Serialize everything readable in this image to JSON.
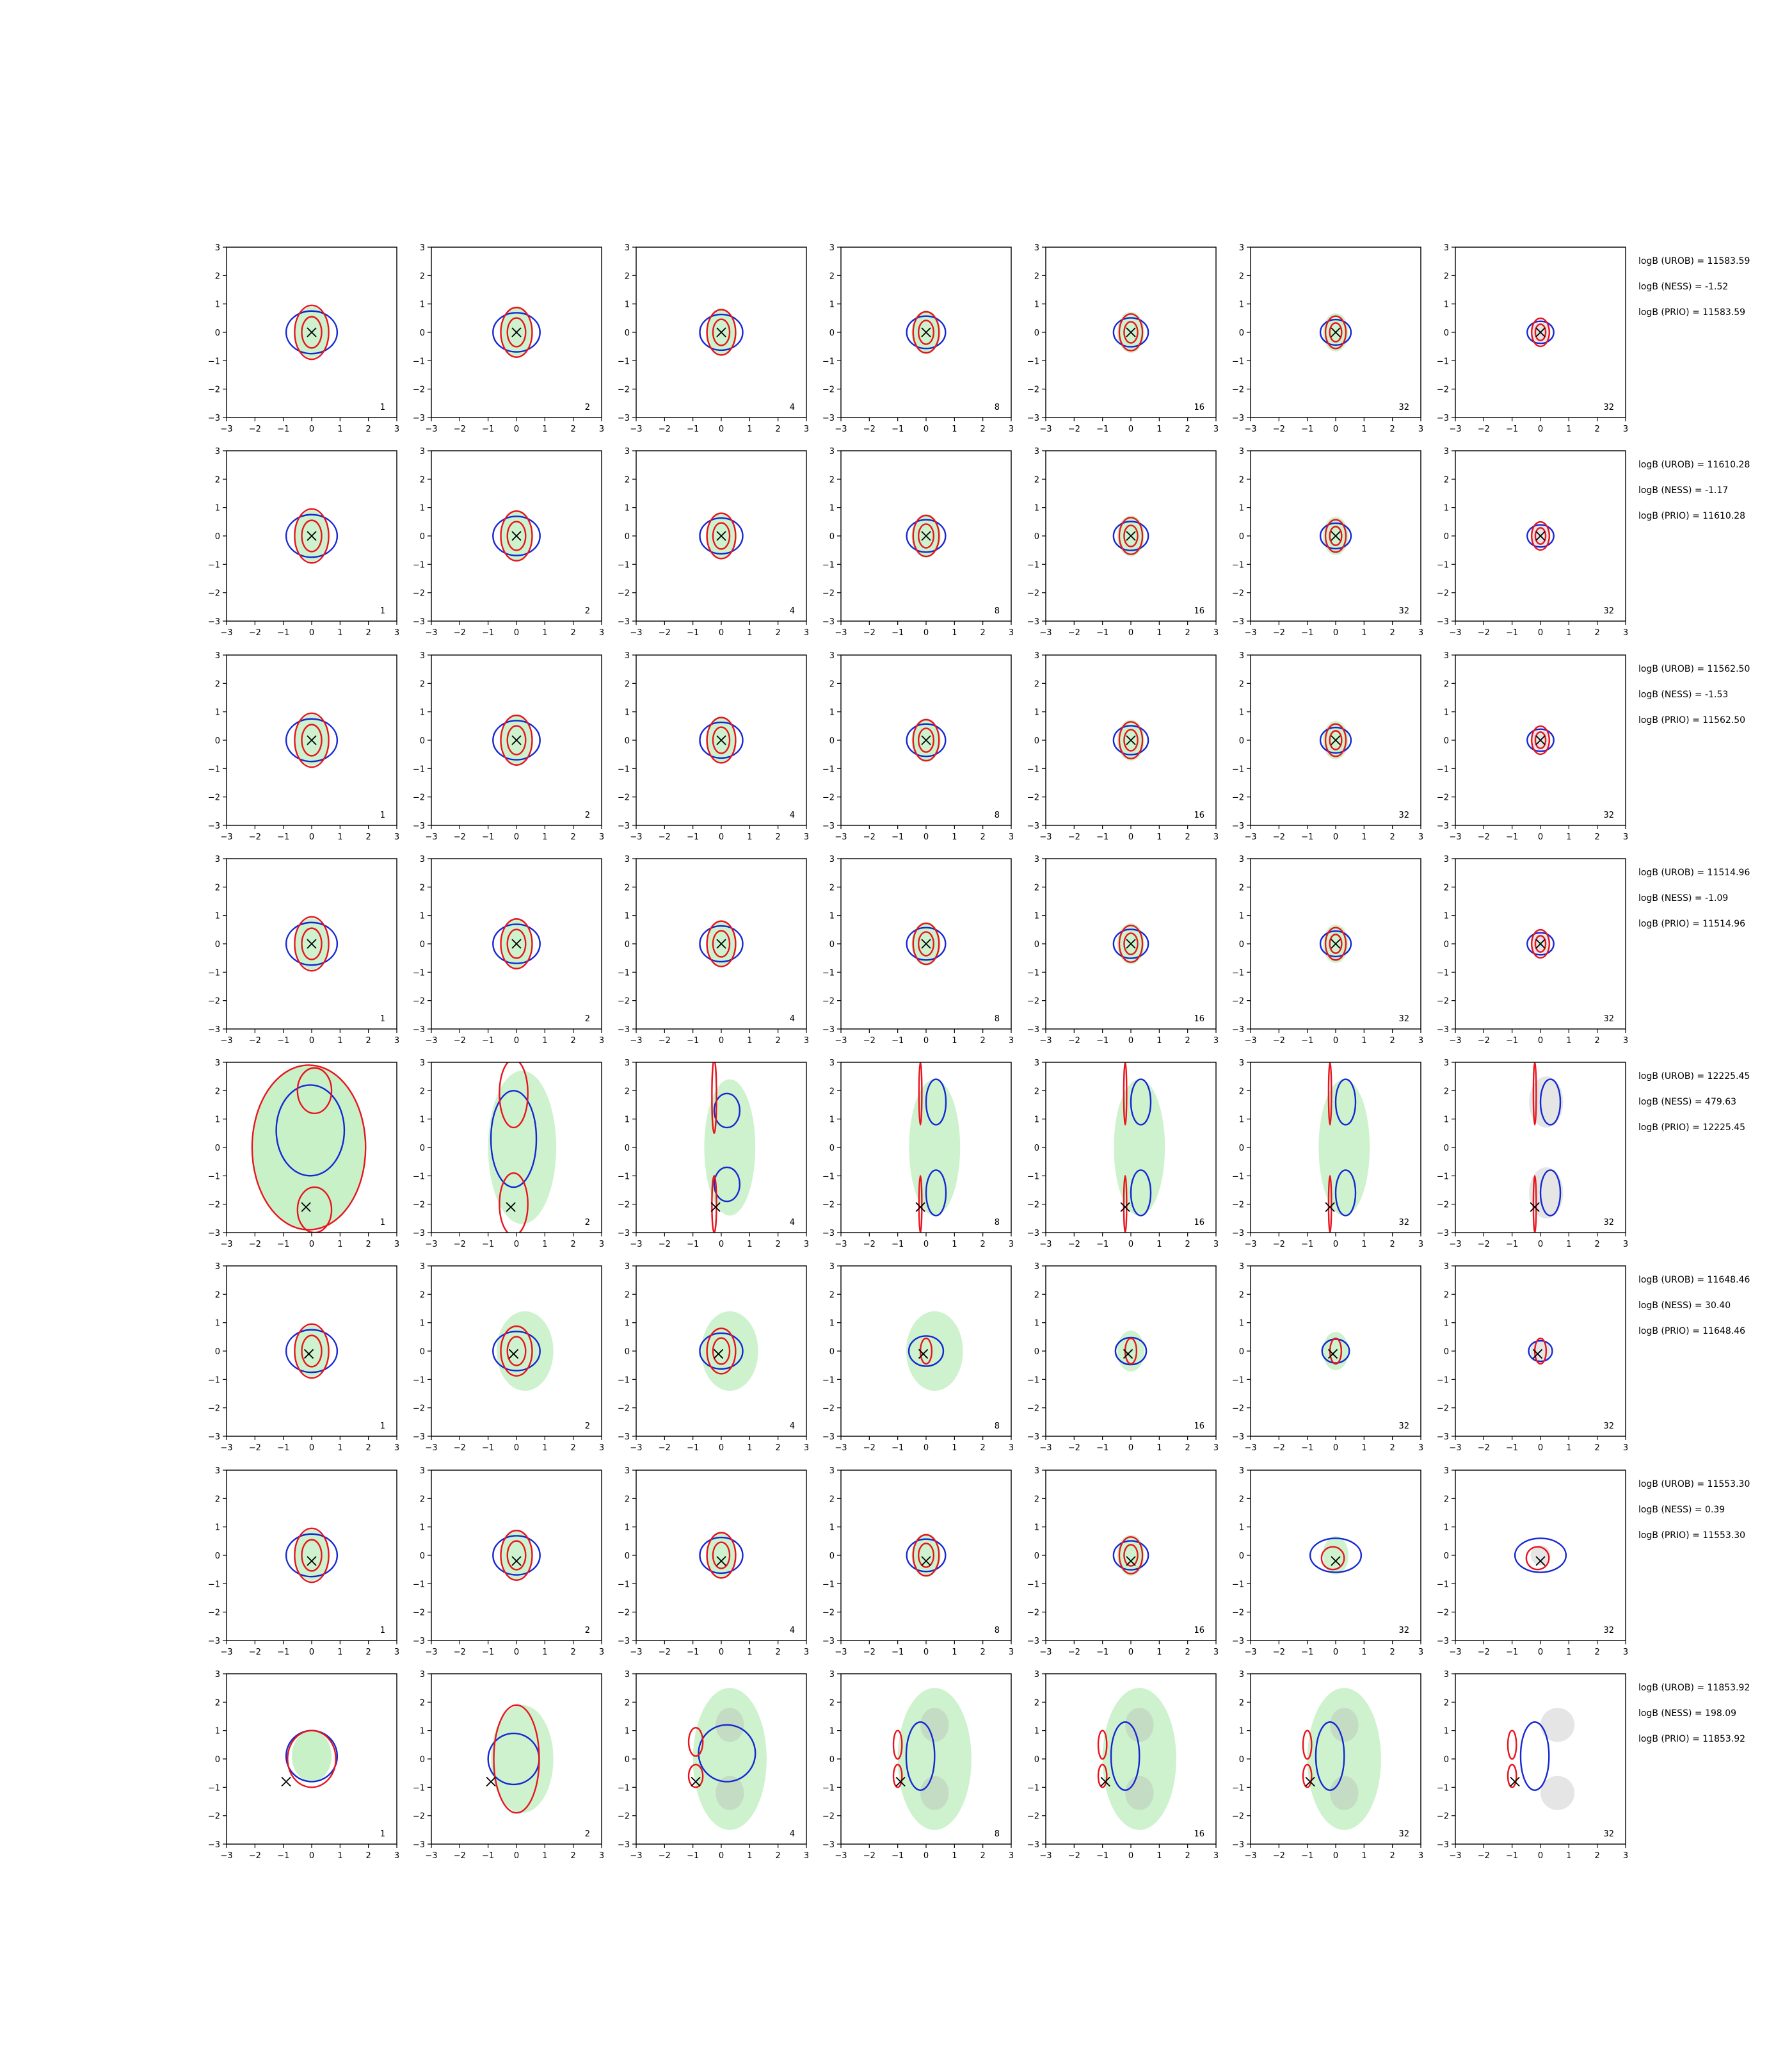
{
  "figure": {
    "axis_ticks": [
      "−3",
      "−2",
      "−1",
      "0",
      "1",
      "2",
      "3"
    ],
    "colors": {
      "reference": "#9be59b",
      "prior": "#b4b4b4",
      "red_contour": "#e8141e",
      "blue_contour": "#1428d2",
      "marker": "#000000"
    }
  },
  "chart_data": [
    {
      "row": 1,
      "type": "contour",
      "xlim": [
        -3,
        3
      ],
      "ylim": [
        -3,
        3
      ],
      "panel_labels": [
        "1",
        "2",
        "4",
        "8",
        "16",
        "32",
        "32"
      ],
      "marker": [
        0.0,
        0.0
      ],
      "scores": [
        "logB (UROB) = 11583.59",
        "logB (NESS) = -1.52",
        "logB (PRIO) = 11583.59"
      ]
    },
    {
      "row": 2,
      "type": "contour",
      "xlim": [
        -3,
        3
      ],
      "ylim": [
        -3,
        3
      ],
      "panel_labels": [
        "1",
        "2",
        "4",
        "8",
        "16",
        "32",
        "32"
      ],
      "marker": [
        0.0,
        0.0
      ],
      "scores": [
        "logB (UROB) = 11610.28",
        "logB (NESS) = -1.17",
        "logB (PRIO) = 11610.28"
      ]
    },
    {
      "row": 3,
      "type": "contour",
      "xlim": [
        -3,
        3
      ],
      "ylim": [
        -3,
        3
      ],
      "panel_labels": [
        "1",
        "2",
        "4",
        "8",
        "16",
        "32",
        "32"
      ],
      "marker": [
        0.0,
        0.0
      ],
      "scores": [
        "logB (UROB) = 11562.50",
        "logB (NESS) = -1.53",
        "logB (PRIO) = 11562.50"
      ]
    },
    {
      "row": 4,
      "type": "contour",
      "xlim": [
        -3,
        3
      ],
      "ylim": [
        -3,
        3
      ],
      "panel_labels": [
        "1",
        "2",
        "4",
        "8",
        "16",
        "32",
        "32"
      ],
      "marker": [
        0.0,
        0.0
      ],
      "scores": [
        "logB (UROB) = 11514.96",
        "logB (NESS) = -1.09",
        "logB (PRIO) = 11514.96"
      ]
    },
    {
      "row": 5,
      "type": "contour",
      "xlim": [
        -3,
        3
      ],
      "ylim": [
        -3,
        3
      ],
      "panel_labels": [
        "1",
        "2",
        "4",
        "8",
        "16",
        "32",
        "32"
      ],
      "marker": [
        -0.2,
        -2.1
      ],
      "scores": [
        "logB (UROB) = 12225.45",
        "logB (NESS) = 479.63",
        "logB (PRIO) = 12225.45"
      ]
    },
    {
      "row": 6,
      "type": "contour",
      "xlim": [
        -3,
        3
      ],
      "ylim": [
        -3,
        3
      ],
      "panel_labels": [
        "1",
        "2",
        "4",
        "8",
        "16",
        "32",
        "32"
      ],
      "marker": [
        -0.1,
        -0.1
      ],
      "scores": [
        "logB (UROB) = 11648.46",
        "logB (NESS) = 30.40",
        "logB (PRIO) = 11648.46"
      ]
    },
    {
      "row": 7,
      "type": "contour",
      "xlim": [
        -3,
        3
      ],
      "ylim": [
        -3,
        3
      ],
      "panel_labels": [
        "1",
        "2",
        "4",
        "8",
        "16",
        "32",
        "32"
      ],
      "marker": [
        0.0,
        -0.2
      ],
      "scores": [
        "logB (UROB) = 11553.30",
        "logB (NESS) = 0.39",
        "logB (PRIO) = 11553.30"
      ]
    },
    {
      "row": 8,
      "type": "contour",
      "xlim": [
        -3,
        3
      ],
      "ylim": [
        -3,
        3
      ],
      "panel_labels": [
        "1",
        "2",
        "4",
        "8",
        "16",
        "32",
        "32"
      ],
      "marker": [
        -0.9,
        -0.8
      ],
      "scores": [
        "logB (UROB) = 11853.92",
        "logB (NESS) = 198.09",
        "logB (PRIO) = 11853.92"
      ]
    }
  ]
}
